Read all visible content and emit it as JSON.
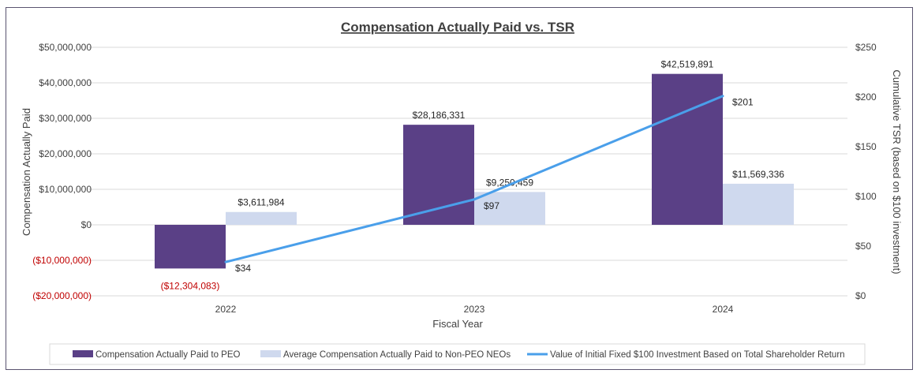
{
  "chart_data": {
    "type": "bar",
    "title": "Compensation Actually Paid vs. TSR",
    "xlabel": "Fiscal Year",
    "ylabel": "Compensation Actually Paid",
    "y2label": "Cumulative TSR (based on $100 investment)",
    "categories": [
      "2022",
      "2023",
      "2024"
    ],
    "ylim": [
      -20000000,
      50000000
    ],
    "y2lim": [
      0,
      250
    ],
    "yticks": [
      {
        "value": 50000000,
        "label": "$50,000,000"
      },
      {
        "value": 40000000,
        "label": "$40,000,000"
      },
      {
        "value": 30000000,
        "label": "$30,000,000"
      },
      {
        "value": 20000000,
        "label": "$20,000,000"
      },
      {
        "value": 10000000,
        "label": "$10,000,000"
      },
      {
        "value": 0,
        "label": "$0"
      },
      {
        "value": -10000000,
        "label": "($10,000,000)"
      },
      {
        "value": -20000000,
        "label": "($20,000,000)"
      }
    ],
    "y2ticks": [
      {
        "value": 250,
        "label": "$250"
      },
      {
        "value": 200,
        "label": "$200"
      },
      {
        "value": 150,
        "label": "$150"
      },
      {
        "value": 100,
        "label": "$100"
      },
      {
        "value": 50,
        "label": "$50"
      },
      {
        "value": 0,
        "label": "$0"
      }
    ],
    "grid": true,
    "legend_position": "bottom",
    "negative_color": "#c00000",
    "series": [
      {
        "name": "Compensation Actually Paid to PEO",
        "type": "bar",
        "axis": "left",
        "color": "#5a4086",
        "values": [
          -12304083,
          28186331,
          42519891
        ],
        "labels": [
          "($12,304,083)",
          "$28,186,331",
          "$42,519,891"
        ]
      },
      {
        "name": "Average Compensation Actually Paid to Non-PEO NEOs",
        "type": "bar",
        "axis": "left",
        "color": "#cfd9ee",
        "values": [
          3611984,
          9250459,
          11569336
        ],
        "labels": [
          "$3,611,984",
          "$9,250,459",
          "$11,569,336"
        ]
      },
      {
        "name": "Value of Initial Fixed $100 Investment Based on Total Shareholder Return",
        "type": "line",
        "axis": "right",
        "color": "#4a9fea",
        "values": [
          34,
          97,
          201
        ],
        "labels": [
          "$34",
          "$97",
          "$201"
        ]
      }
    ]
  }
}
